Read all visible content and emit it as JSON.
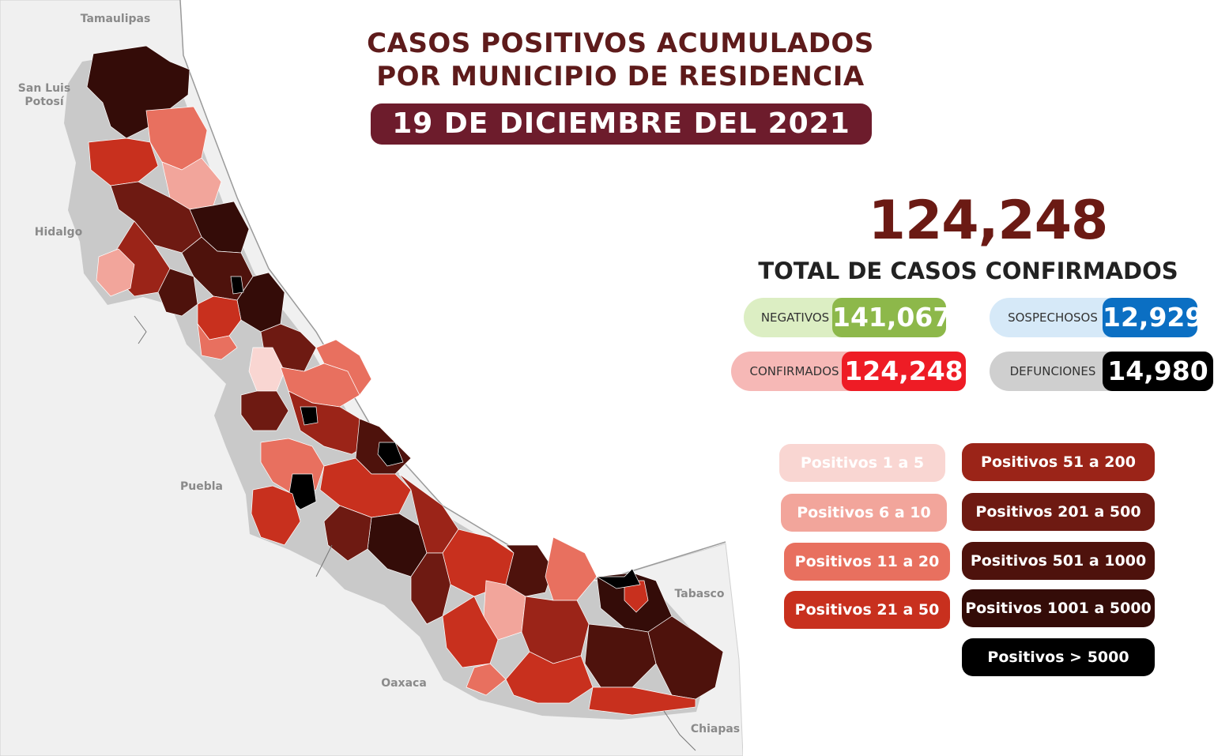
{
  "title": {
    "line1": "CASOS POSITIVOS ACUMULADOS",
    "line2": "POR MUNICIPIO DE RESIDENCIA",
    "date": "19 DE DICIEMBRE DEL 2021"
  },
  "total": {
    "value": "124,248",
    "label": "TOTAL DE CASOS CONFIRMADOS"
  },
  "stats": {
    "negativos": {
      "label": "NEGATIVOS",
      "value": "141,067",
      "color": "#8db84a"
    },
    "sospechosos": {
      "label": "SOSPECHOSOS",
      "value": "12,929",
      "color": "#0b6fc3"
    },
    "confirmados": {
      "label": "CONFIRMADOS",
      "value": "124,248",
      "color": "#ee1c25"
    },
    "defunciones": {
      "label": "DEFUNCIONES",
      "value": "14,980",
      "color": "#000000"
    }
  },
  "legend": [
    {
      "label": "Positivos 1 a 5",
      "color": "#f9d6d2"
    },
    {
      "label": "Positivos 6 a 10",
      "color": "#f2a59b"
    },
    {
      "label": "Positivos 11 a 20",
      "color": "#e8705f"
    },
    {
      "label": "Positivos 21 a 50",
      "color": "#c8301e"
    },
    {
      "label": "Positivos 51 a 200",
      "color": "#9b2418"
    },
    {
      "label": "Positivos 201 a 500",
      "color": "#6e1a12"
    },
    {
      "label": "Positivos 501 a 1000",
      "color": "#4e120c"
    },
    {
      "label": "Positivos 1001 a 5000",
      "color": "#340c08"
    },
    {
      "label": "Positivos > 5000",
      "color": "#000000"
    }
  ],
  "neighbors": {
    "tamaulipas": "Tamaulipas",
    "san_luis_potosi_1": "San Luis",
    "san_luis_potosi_2": "Potosí",
    "hidalgo": "Hidalgo",
    "puebla": "Puebla",
    "oaxaca": "Oaxaca",
    "tabasco": "Tabasco",
    "chiapas": "Chiapas"
  }
}
